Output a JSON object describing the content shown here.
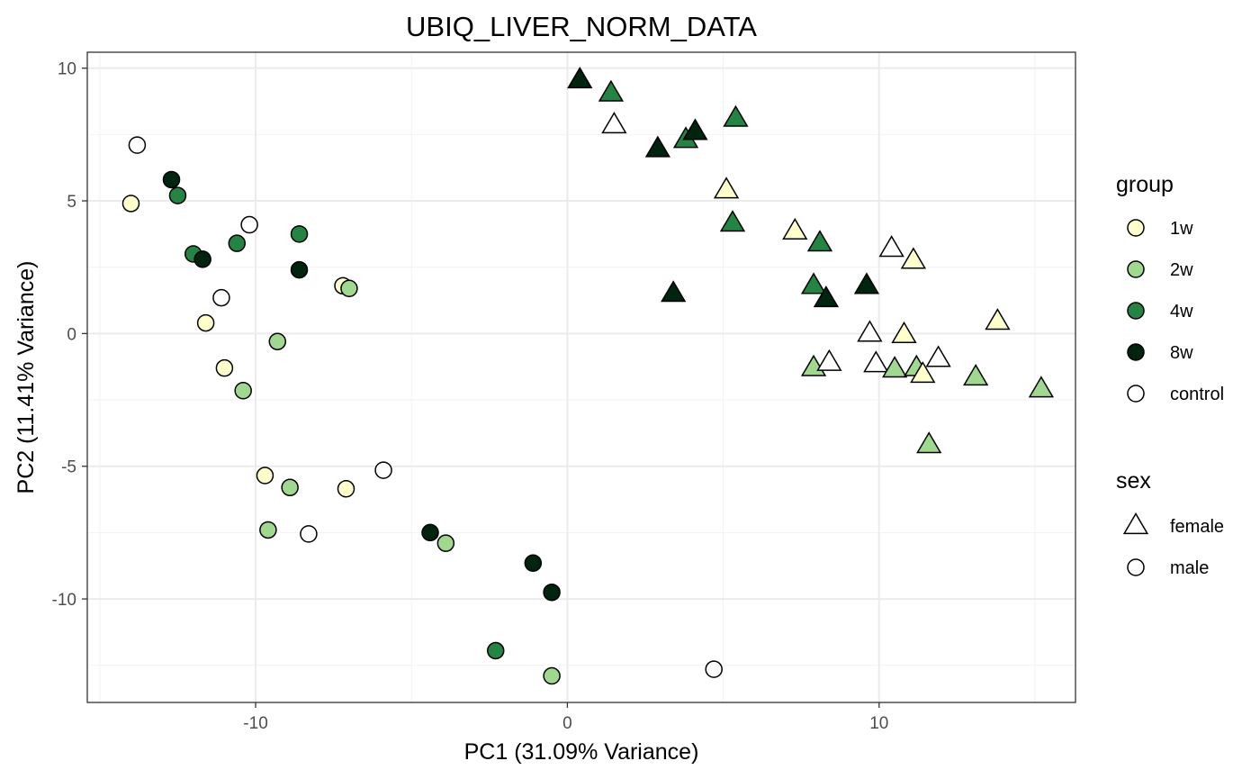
{
  "chart_data": {
    "type": "scatter",
    "title": "UBIQ_LIVER_NORM_DATA",
    "xlabel": "PC1 (31.09% Variance)",
    "ylabel": "PC2 (11.41% Variance)",
    "xlim": [
      -15.4,
      16.3
    ],
    "ylim": [
      -13.9,
      10.6
    ],
    "x_ticks": [
      -10,
      0,
      10
    ],
    "y_ticks": [
      10,
      5,
      0,
      -5,
      -10
    ],
    "x_tick_labels": [
      "-10",
      "0",
      "10"
    ],
    "y_tick_labels": [
      "10",
      "5",
      "0",
      "-5",
      "-10"
    ],
    "grid": true,
    "legend_position": "right",
    "group_colors": {
      "1w": "#ffffcc",
      "2w": "#a1d88f",
      "4w": "#238443",
      "8w": "#00240e",
      "control": "#ffffff"
    },
    "legends": {
      "group": {
        "title": "group",
        "items": [
          "1w",
          "2w",
          "4w",
          "8w",
          "control"
        ]
      },
      "sex": {
        "title": "sex",
        "items": [
          {
            "label": "female",
            "shape": "triangle"
          },
          {
            "label": "male",
            "shape": "circle"
          }
        ]
      }
    },
    "points": [
      {
        "x": -13.8,
        "y": 7.1,
        "group": "control",
        "sex": "male"
      },
      {
        "x": -14.0,
        "y": 4.9,
        "group": "1w",
        "sex": "male"
      },
      {
        "x": -12.7,
        "y": 5.8,
        "group": "8w",
        "sex": "male"
      },
      {
        "x": -12.5,
        "y": 5.2,
        "group": "4w",
        "sex": "male"
      },
      {
        "x": -12.0,
        "y": 3.0,
        "group": "4w",
        "sex": "male"
      },
      {
        "x": -11.7,
        "y": 2.8,
        "group": "8w",
        "sex": "male"
      },
      {
        "x": -10.6,
        "y": 3.4,
        "group": "4w",
        "sex": "male"
      },
      {
        "x": -10.2,
        "y": 4.1,
        "group": "control",
        "sex": "male"
      },
      {
        "x": -8.6,
        "y": 3.75,
        "group": "4w",
        "sex": "male"
      },
      {
        "x": -8.6,
        "y": 2.4,
        "group": "8w",
        "sex": "male"
      },
      {
        "x": -11.1,
        "y": 1.35,
        "group": "control",
        "sex": "male"
      },
      {
        "x": -11.6,
        "y": 0.4,
        "group": "1w",
        "sex": "male"
      },
      {
        "x": -7.2,
        "y": 1.8,
        "group": "1w",
        "sex": "male"
      },
      {
        "x": -7.0,
        "y": 1.7,
        "group": "2w",
        "sex": "male"
      },
      {
        "x": -9.3,
        "y": -0.3,
        "group": "2w",
        "sex": "male"
      },
      {
        "x": -11.0,
        "y": -1.3,
        "group": "1w",
        "sex": "male"
      },
      {
        "x": -10.4,
        "y": -2.15,
        "group": "2w",
        "sex": "male"
      },
      {
        "x": -9.7,
        "y": -5.35,
        "group": "1w",
        "sex": "male"
      },
      {
        "x": -8.9,
        "y": -5.8,
        "group": "2w",
        "sex": "male"
      },
      {
        "x": -7.1,
        "y": -5.85,
        "group": "1w",
        "sex": "male"
      },
      {
        "x": -5.9,
        "y": -5.15,
        "group": "control",
        "sex": "male"
      },
      {
        "x": -9.6,
        "y": -7.4,
        "group": "2w",
        "sex": "male"
      },
      {
        "x": -8.3,
        "y": -7.55,
        "group": "control",
        "sex": "male"
      },
      {
        "x": -4.4,
        "y": -7.5,
        "group": "8w",
        "sex": "male"
      },
      {
        "x": -3.9,
        "y": -7.9,
        "group": "2w",
        "sex": "male"
      },
      {
        "x": -1.1,
        "y": -8.65,
        "group": "8w",
        "sex": "male"
      },
      {
        "x": -0.5,
        "y": -9.75,
        "group": "8w",
        "sex": "male"
      },
      {
        "x": -2.3,
        "y": -11.95,
        "group": "4w",
        "sex": "male"
      },
      {
        "x": -0.5,
        "y": -12.9,
        "group": "2w",
        "sex": "male"
      },
      {
        "x": 4.7,
        "y": -12.65,
        "group": "control",
        "sex": "male"
      },
      {
        "x": 0.4,
        "y": 9.55,
        "group": "8w",
        "sex": "female"
      },
      {
        "x": 1.4,
        "y": 9.05,
        "group": "4w",
        "sex": "female"
      },
      {
        "x": 1.5,
        "y": 7.85,
        "group": "control",
        "sex": "female"
      },
      {
        "x": 2.9,
        "y": 6.95,
        "group": "8w",
        "sex": "female"
      },
      {
        "x": 3.8,
        "y": 7.3,
        "group": "4w",
        "sex": "female"
      },
      {
        "x": 4.1,
        "y": 7.6,
        "group": "8w",
        "sex": "female"
      },
      {
        "x": 5.4,
        "y": 8.1,
        "group": "4w",
        "sex": "female"
      },
      {
        "x": 5.1,
        "y": 5.4,
        "group": "1w",
        "sex": "female"
      },
      {
        "x": 5.3,
        "y": 4.15,
        "group": "4w",
        "sex": "female"
      },
      {
        "x": 7.3,
        "y": 3.85,
        "group": "1w",
        "sex": "female"
      },
      {
        "x": 8.1,
        "y": 3.4,
        "group": "4w",
        "sex": "female"
      },
      {
        "x": 3.4,
        "y": 1.5,
        "group": "8w",
        "sex": "female"
      },
      {
        "x": 7.9,
        "y": 1.8,
        "group": "4w",
        "sex": "female"
      },
      {
        "x": 8.3,
        "y": 1.3,
        "group": "8w",
        "sex": "female"
      },
      {
        "x": 9.6,
        "y": 1.8,
        "group": "8w",
        "sex": "female"
      },
      {
        "x": 10.4,
        "y": 3.2,
        "group": "control",
        "sex": "female"
      },
      {
        "x": 11.1,
        "y": 2.75,
        "group": "1w",
        "sex": "female"
      },
      {
        "x": 9.7,
        "y": 0.0,
        "group": "control",
        "sex": "female"
      },
      {
        "x": 10.8,
        "y": -0.05,
        "group": "1w",
        "sex": "female"
      },
      {
        "x": 13.8,
        "y": 0.45,
        "group": "1w",
        "sex": "female"
      },
      {
        "x": 7.9,
        "y": -1.3,
        "group": "2w",
        "sex": "female"
      },
      {
        "x": 8.4,
        "y": -1.1,
        "group": "control",
        "sex": "female"
      },
      {
        "x": 9.9,
        "y": -1.15,
        "group": "control",
        "sex": "female"
      },
      {
        "x": 10.5,
        "y": -1.35,
        "group": "2w",
        "sex": "female"
      },
      {
        "x": 11.2,
        "y": -1.3,
        "group": "2w",
        "sex": "female"
      },
      {
        "x": 11.4,
        "y": -1.55,
        "group": "1w",
        "sex": "female"
      },
      {
        "x": 11.9,
        "y": -0.95,
        "group": "control",
        "sex": "female"
      },
      {
        "x": 13.1,
        "y": -1.65,
        "group": "2w",
        "sex": "female"
      },
      {
        "x": 15.2,
        "y": -2.1,
        "group": "2w",
        "sex": "female"
      },
      {
        "x": 11.6,
        "y": -4.2,
        "group": "2w",
        "sex": "female"
      }
    ]
  }
}
